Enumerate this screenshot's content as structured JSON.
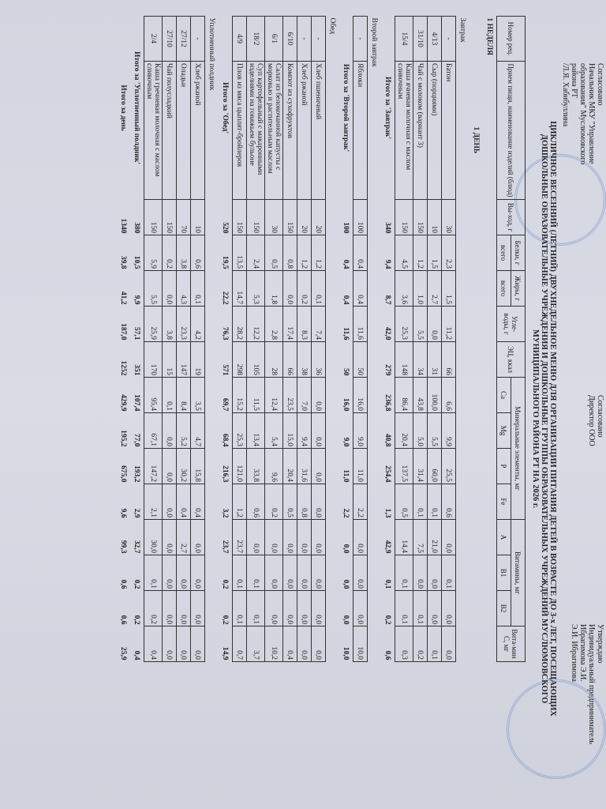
{
  "approvals": {
    "left": [
      "Согласовано",
      "Начальник МКУ \"Управление",
      "образования\" Муслюмовского",
      "района РТ",
      "/Л.Я. Хабибуллина"
    ],
    "middle": [
      "Согласовано",
      "Директор ООО"
    ],
    "right": [
      "Утверждаю",
      "Индивидуальный предприниматель",
      "Ибрагимова Э.И.",
      "Э.И. Ибрагимова"
    ]
  },
  "title": "ЦИКЛИЧНОЕ ВЕСЕННИЙ (ЛЕТНИЙ) ДВУХНЕДЕЛЬНОЕ МЕНЮ ДЛЯ ОРГАНИЗАЦИИ ПИТАНИЯ ДЕТЕЙ В ВОЗРАСТЕ ДО 3-х ЛЕТ, ПОСЕЩАЮЩИХ ДОШКОЛЬНЫЕ ОБРАЗОВАТЕЛЬНЫЕ УЧРЕЖДЕНИЯ И ДОШКОЛЬНЫЕ ГРУППЫ ОБРАЗОВАТЕЛЬНЫХ УЧРЕЖДЕНИЙ МУСЛЮМОВСКОГО МУНИЦИПАЛЬНОГО РАЙОНА РТ НА 2026 г.",
  "header": {
    "num": "Номер рец.",
    "name": "Прием пищи, наименование изделий (блюд)",
    "yield": "Вы-ход, г",
    "protein": "Белки, г",
    "fat": "Жиры, г",
    "total": "всего",
    "carbs": "Угле-воды, г",
    "kcal": "ЭЦ, ккал",
    "minerals": "Минеральные элементы, мг",
    "mineral_cols": [
      "Ca",
      "Mg",
      "P",
      "Fe"
    ],
    "vitamins": "Витамины, мг",
    "vitamin_cols": [
      "A",
      "B1",
      "B2"
    ],
    "vitc": "Вита-мин С, мг"
  },
  "rows": [
    {
      "type": "section",
      "name": "1 НЕДЕЛЯ"
    },
    {
      "type": "section",
      "name": "1 ДЕНЬ"
    },
    {
      "type": "section",
      "name": "Завтрак"
    },
    {
      "type": "item",
      "num": "-",
      "name": "Батон",
      "v": [
        "30",
        "2,3",
        "1,5",
        "11,2",
        "66",
        "6,6",
        "9,9",
        "25,5",
        "0,6",
        "0,0",
        "0,1",
        "0,0",
        "0,0"
      ]
    },
    {
      "type": "item",
      "num": "4/13",
      "name": "Сыр (порциями)",
      "v": [
        "10",
        "1,5",
        "2,7",
        "0,0",
        "31",
        "100,0",
        "5,5",
        "60,0",
        "0,1",
        "21,0",
        "0,0",
        "0,0",
        "0,1"
      ]
    },
    {
      "type": "item",
      "num": "31/10",
      "name": "Чай с молоком (вариант 3)",
      "v": [
        "150",
        "1,2",
        "1,0",
        "5,5",
        "34",
        "43,8",
        "5,0",
        "31,4",
        "0,1",
        "7,5",
        "0,0",
        "0,1",
        "0,2"
      ]
    },
    {
      "type": "item",
      "num": "15/4",
      "name": "Каша ячневая молочная с маслом сливочным",
      "v": [
        "150",
        "4,5",
        "3,6",
        "25,3",
        "148",
        "86,4",
        "20,4",
        "137,5",
        "0,5",
        "14,4",
        "0,1",
        "0,1",
        "0,3"
      ]
    },
    {
      "type": "total",
      "name": "Итого за 'Завтрак'",
      "v": [
        "340",
        "9,4",
        "8,7",
        "42,0",
        "279",
        "236,8",
        "40,8",
        "254,4",
        "1,3",
        "42,9",
        "0,1",
        "0,2",
        "0,6"
      ]
    },
    {
      "type": "section",
      "name": "Второй завтрак"
    },
    {
      "type": "item",
      "num": "-",
      "name": "Яблоки",
      "v": [
        "100",
        "0,4",
        "0,4",
        "11,6",
        "50",
        "16,0",
        "9,0",
        "11,0",
        "2,2",
        "0,0",
        "0,0",
        "0,0",
        "10,0"
      ]
    },
    {
      "type": "total",
      "name": "Итого за 'Второй завтрак'",
      "v": [
        "100",
        "0,4",
        "0,4",
        "11,6",
        "50",
        "16,0",
        "9,0",
        "11,0",
        "2,2",
        "0,0",
        "0,0",
        "0,0",
        "10,0"
      ]
    },
    {
      "type": "section",
      "name": "Обед"
    },
    {
      "type": "item",
      "num": "-",
      "name": "Хлеб пшеничный",
      "v": [
        "20",
        "1,2",
        "0,1",
        "7,4",
        "36",
        "0,0",
        "0,0",
        "0,0",
        "0,0",
        "0,0",
        "0,0",
        "0,0",
        "0,0"
      ]
    },
    {
      "type": "item",
      "num": "-",
      "name": "Хлеб ржаной",
      "v": [
        "20",
        "1,2",
        "0,2",
        "8,3",
        "38",
        "7,0",
        "9,4",
        "31,6",
        "0,8",
        "0,0",
        "0,0",
        "0,0",
        "0,0"
      ]
    },
    {
      "type": "item",
      "num": "6/10",
      "name": "Компот из сухофруктов",
      "v": [
        "150",
        "0,8",
        "0,0",
        "17,4",
        "66",
        "23,5",
        "15,0",
        "20,4",
        "0,5",
        "0,0",
        "0,0",
        "0,0",
        "0,4"
      ]
    },
    {
      "type": "item",
      "num": "6/1",
      "name": "Салат из белокочанной капусты с морковью и растительным маслом",
      "v": [
        "30",
        "0,5",
        "1,8",
        "2,8",
        "28",
        "12,4",
        "5,4",
        "9,6",
        "0,2",
        "0,0",
        "0,0",
        "0,0",
        "10,2"
      ]
    },
    {
      "type": "item",
      "num": "18/2",
      "name": "Суп картофельный с макаронными изделиями на говяжьем бульоне",
      "v": [
        "150",
        "2,4",
        "5,3",
        "12,2",
        "105",
        "11,5",
        "13,4",
        "33,8",
        "0,6",
        "0,0",
        "0,1",
        "0,1",
        "3,7"
      ]
    },
    {
      "type": "item",
      "num": "4/9",
      "name": "Плов из мяса цыплят-бройлеров",
      "v": [
        "150",
        "13,5",
        "14,7",
        "28,2",
        "298",
        "15,2",
        "25,3",
        "121,0",
        "1,2",
        "23,7",
        "0,1",
        "0,1",
        "0,7"
      ]
    },
    {
      "type": "total",
      "name": "Итого за 'Обед'",
      "v": [
        "520",
        "19,5",
        "22,2",
        "76,3",
        "571",
        "69,7",
        "68,4",
        "216,3",
        "3,2",
        "23,7",
        "0,2",
        "0,2",
        "14,9"
      ]
    },
    {
      "type": "section",
      "name": "Уплотненный полдник"
    },
    {
      "type": "item",
      "num": "-",
      "name": "Хлеб ржаной",
      "v": [
        "10",
        "0,6",
        "0,1",
        "4,2",
        "19",
        "3,5",
        "4,7",
        "15,8",
        "0,4",
        "0,0",
        "0,0",
        "0,0",
        "0,0"
      ]
    },
    {
      "type": "item",
      "num": "27/12",
      "name": "Оладьи",
      "v": [
        "70",
        "3,8",
        "4,3",
        "23,3",
        "147",
        "8,4",
        "5,2",
        "30,2",
        "0,4",
        "2,7",
        "0,0",
        "0,0",
        "0,0"
      ]
    },
    {
      "type": "item",
      "num": "27/10",
      "name": "Чай полусладкий",
      "v": [
        "150",
        "0,2",
        "0,0",
        "3,8",
        "15",
        "0,1",
        "0,0",
        "0,0",
        "0,0",
        "0,0",
        "0,0",
        "0,0",
        "0,0"
      ]
    },
    {
      "type": "item",
      "num": "2/4",
      "name": "Каша гречневая молочная с маслом сливочным",
      "v": [
        "150",
        "5,9",
        "5,5",
        "25,9",
        "170",
        "95,4",
        "67,1",
        "147,2",
        "2,1",
        "30,0",
        "0,1",
        "0,2",
        "0,4"
      ]
    },
    {
      "type": "total",
      "name": "Итого за 'Уплотненный полдник'",
      "v": [
        "380",
        "10,5",
        "9,9",
        "57,1",
        "351",
        "107,4",
        "77,0",
        "193,2",
        "2,9",
        "32,7",
        "0,2",
        "0,2",
        "0,4"
      ]
    },
    {
      "type": "total",
      "name": "Итого за день",
      "v": [
        "1340",
        "39,8",
        "41,2",
        "187,0",
        "1252",
        "429,9",
        "195,2",
        "675,0",
        "9,6",
        "99,3",
        "0,6",
        "0,6",
        "25,9"
      ]
    }
  ]
}
